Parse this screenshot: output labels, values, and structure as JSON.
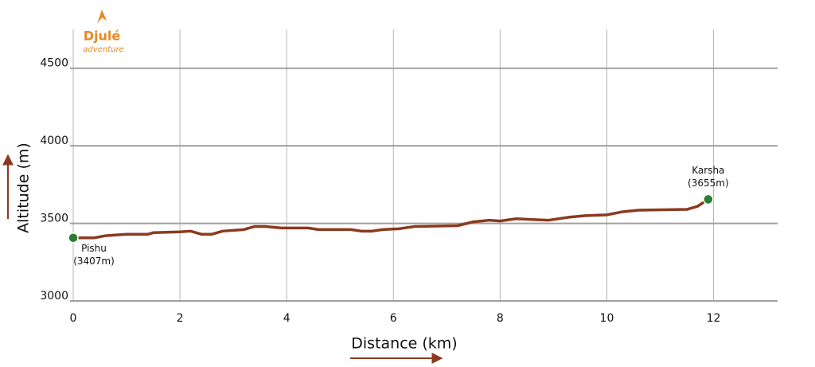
{
  "chart_data": {
    "type": "line",
    "logo": {
      "name": "Djulé",
      "tagline": "adventure"
    },
    "xlabel": "Distance (km)",
    "ylabel": "Altitude (m)",
    "x": [
      0,
      0.4,
      0.6,
      1,
      1.4,
      1.5,
      2,
      2.2,
      2.4,
      2.6,
      2.8,
      3.2,
      3.4,
      3.6,
      3.9,
      4.4,
      4.6,
      5.2,
      5.4,
      5.6,
      5.8,
      6.1,
      6.4,
      7.2,
      7.5,
      7.8,
      8.0,
      8.3,
      8.6,
      8.9,
      9.3,
      9.6,
      10.0,
      10.3,
      10.6,
      11.5,
      11.7,
      11.9
    ],
    "series": [
      {
        "name": "Altitude",
        "color": "#8b3a1f",
        "values": [
          3407,
          3407,
          3420,
          3430,
          3430,
          3440,
          3445,
          3450,
          3430,
          3430,
          3450,
          3460,
          3480,
          3480,
          3470,
          3470,
          3460,
          3460,
          3450,
          3450,
          3460,
          3465,
          3480,
          3485,
          3510,
          3520,
          3515,
          3530,
          3525,
          3520,
          3540,
          3550,
          3555,
          3575,
          3585,
          3590,
          3610,
          3655
        ]
      }
    ],
    "markers": [
      {
        "name": "Pishu",
        "label": "(3407m)",
        "x": 0,
        "y": 3407
      },
      {
        "name": "Karsha",
        "label": "(3655m)",
        "x": 11.9,
        "y": 3655
      }
    ],
    "marker_color": "#2e7d32",
    "xlim": [
      0,
      13.2
    ],
    "xticks": [
      0,
      2,
      4,
      6,
      8,
      10,
      12
    ],
    "ylim": [
      3000,
      4750
    ],
    "yticks": [
      3000,
      3500,
      4000,
      4500
    ],
    "grid": true
  }
}
